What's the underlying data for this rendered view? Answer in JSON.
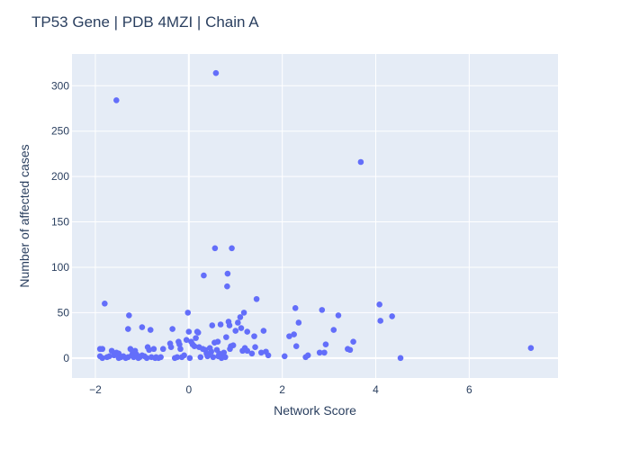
{
  "chart_data": {
    "type": "scatter",
    "title": "TP53 Gene | PDB 4MZI | Chain A",
    "xlabel": "Network Score",
    "ylabel": "Number of affected cases",
    "xlim": [
      -2.5,
      7.9
    ],
    "ylim": [
      -22,
      335
    ],
    "x_ticks": [
      -2,
      0,
      2,
      4,
      6
    ],
    "y_ticks": [
      0,
      50,
      100,
      150,
      200,
      250,
      300
    ],
    "grid": true,
    "marker_color": "#636efa",
    "plot_bg": "#e5ecf6",
    "points": [
      {
        "x": -1.9,
        "y": 10
      },
      {
        "x": -1.85,
        "y": 10
      },
      {
        "x": -1.9,
        "y": 2
      },
      {
        "x": -1.85,
        "y": 0
      },
      {
        "x": -1.8,
        "y": 60
      },
      {
        "x": -1.75,
        "y": 1
      },
      {
        "x": -1.7,
        "y": 2
      },
      {
        "x": -1.65,
        "y": 8
      },
      {
        "x": -1.6,
        "y": 3
      },
      {
        "x": -1.55,
        "y": 284
      },
      {
        "x": -1.55,
        "y": 6
      },
      {
        "x": -1.5,
        "y": 5
      },
      {
        "x": -1.5,
        "y": 0
      },
      {
        "x": -1.45,
        "y": 1
      },
      {
        "x": -1.4,
        "y": 2
      },
      {
        "x": -1.35,
        "y": 0
      },
      {
        "x": -1.3,
        "y": 1
      },
      {
        "x": -1.3,
        "y": 32
      },
      {
        "x": -1.28,
        "y": 47
      },
      {
        "x": -1.25,
        "y": 10
      },
      {
        "x": -1.22,
        "y": 3
      },
      {
        "x": -1.2,
        "y": 6
      },
      {
        "x": -1.18,
        "y": 1
      },
      {
        "x": -1.15,
        "y": 8
      },
      {
        "x": -1.12,
        "y": 4
      },
      {
        "x": -1.1,
        "y": 2
      },
      {
        "x": -1.08,
        "y": 0
      },
      {
        "x": -1.05,
        "y": 1
      },
      {
        "x": -1.0,
        "y": 34
      },
      {
        "x": -1.0,
        "y": 3
      },
      {
        "x": -0.95,
        "y": 2
      },
      {
        "x": -0.9,
        "y": 0
      },
      {
        "x": -0.88,
        "y": 12
      },
      {
        "x": -0.85,
        "y": 9
      },
      {
        "x": -0.82,
        "y": 31
      },
      {
        "x": -0.8,
        "y": 1
      },
      {
        "x": -0.75,
        "y": 10
      },
      {
        "x": -0.72,
        "y": 0
      },
      {
        "x": -0.7,
        "y": 1
      },
      {
        "x": -0.65,
        "y": 0
      },
      {
        "x": -0.6,
        "y": 1
      },
      {
        "x": -0.55,
        "y": 10
      },
      {
        "x": -0.4,
        "y": 16
      },
      {
        "x": -0.38,
        "y": 12
      },
      {
        "x": -0.35,
        "y": 32
      },
      {
        "x": -0.3,
        "y": 0
      },
      {
        "x": -0.25,
        "y": 1
      },
      {
        "x": -0.22,
        "y": 18
      },
      {
        "x": -0.2,
        "y": 15
      },
      {
        "x": -0.18,
        "y": 10
      },
      {
        "x": -0.15,
        "y": 1
      },
      {
        "x": -0.1,
        "y": 3
      },
      {
        "x": -0.05,
        "y": 20
      },
      {
        "x": -0.02,
        "y": 50
      },
      {
        "x": 0.0,
        "y": 29
      },
      {
        "x": 0.02,
        "y": 0
      },
      {
        "x": 0.05,
        "y": 18
      },
      {
        "x": 0.08,
        "y": 15
      },
      {
        "x": 0.12,
        "y": 13
      },
      {
        "x": 0.15,
        "y": 22
      },
      {
        "x": 0.18,
        "y": 29
      },
      {
        "x": 0.2,
        "y": 28
      },
      {
        "x": 0.22,
        "y": 12
      },
      {
        "x": 0.25,
        "y": 1
      },
      {
        "x": 0.3,
        "y": 10
      },
      {
        "x": 0.32,
        "y": 91
      },
      {
        "x": 0.35,
        "y": 9
      },
      {
        "x": 0.38,
        "y": 5
      },
      {
        "x": 0.4,
        "y": 2
      },
      {
        "x": 0.42,
        "y": 4
      },
      {
        "x": 0.45,
        "y": 11
      },
      {
        "x": 0.48,
        "y": 7
      },
      {
        "x": 0.5,
        "y": 36
      },
      {
        "x": 0.52,
        "y": 1
      },
      {
        "x": 0.55,
        "y": 17
      },
      {
        "x": 0.56,
        "y": 121
      },
      {
        "x": 0.58,
        "y": 314
      },
      {
        "x": 0.6,
        "y": 9
      },
      {
        "x": 0.62,
        "y": 18
      },
      {
        "x": 0.63,
        "y": 2
      },
      {
        "x": 0.65,
        "y": 5
      },
      {
        "x": 0.68,
        "y": 37
      },
      {
        "x": 0.7,
        "y": 0
      },
      {
        "x": 0.72,
        "y": 4
      },
      {
        "x": 0.75,
        "y": 6
      },
      {
        "x": 0.78,
        "y": 1
      },
      {
        "x": 0.8,
        "y": 23
      },
      {
        "x": 0.82,
        "y": 79
      },
      {
        "x": 0.83,
        "y": 93
      },
      {
        "x": 0.85,
        "y": 40
      },
      {
        "x": 0.87,
        "y": 36
      },
      {
        "x": 0.88,
        "y": 10
      },
      {
        "x": 0.9,
        "y": 13
      },
      {
        "x": 0.92,
        "y": 121
      },
      {
        "x": 0.95,
        "y": 14
      },
      {
        "x": 1.0,
        "y": 30
      },
      {
        "x": 1.05,
        "y": 39
      },
      {
        "x": 1.1,
        "y": 45
      },
      {
        "x": 1.12,
        "y": 33
      },
      {
        "x": 1.15,
        "y": 8
      },
      {
        "x": 1.18,
        "y": 50
      },
      {
        "x": 1.2,
        "y": 11
      },
      {
        "x": 1.25,
        "y": 8
      },
      {
        "x": 1.25,
        "y": 29
      },
      {
        "x": 1.35,
        "y": 5
      },
      {
        "x": 1.4,
        "y": 24
      },
      {
        "x": 1.42,
        "y": 12
      },
      {
        "x": 1.45,
        "y": 65
      },
      {
        "x": 1.55,
        "y": 6
      },
      {
        "x": 1.6,
        "y": 30
      },
      {
        "x": 1.65,
        "y": 7
      },
      {
        "x": 1.7,
        "y": 3
      },
      {
        "x": 2.05,
        "y": 2
      },
      {
        "x": 2.15,
        "y": 24
      },
      {
        "x": 2.25,
        "y": 26
      },
      {
        "x": 2.28,
        "y": 55
      },
      {
        "x": 2.3,
        "y": 13
      },
      {
        "x": 2.35,
        "y": 39
      },
      {
        "x": 2.5,
        "y": 1
      },
      {
        "x": 2.55,
        "y": 3
      },
      {
        "x": 2.8,
        "y": 6
      },
      {
        "x": 2.85,
        "y": 53
      },
      {
        "x": 2.9,
        "y": 6
      },
      {
        "x": 2.93,
        "y": 15
      },
      {
        "x": 3.1,
        "y": 31
      },
      {
        "x": 3.2,
        "y": 47
      },
      {
        "x": 3.4,
        "y": 10
      },
      {
        "x": 3.45,
        "y": 9
      },
      {
        "x": 3.52,
        "y": 18
      },
      {
        "x": 3.68,
        "y": 216
      },
      {
        "x": 4.08,
        "y": 59
      },
      {
        "x": 4.1,
        "y": 41
      },
      {
        "x": 4.35,
        "y": 46
      },
      {
        "x": 4.53,
        "y": 0
      },
      {
        "x": 7.32,
        "y": 11
      }
    ]
  }
}
